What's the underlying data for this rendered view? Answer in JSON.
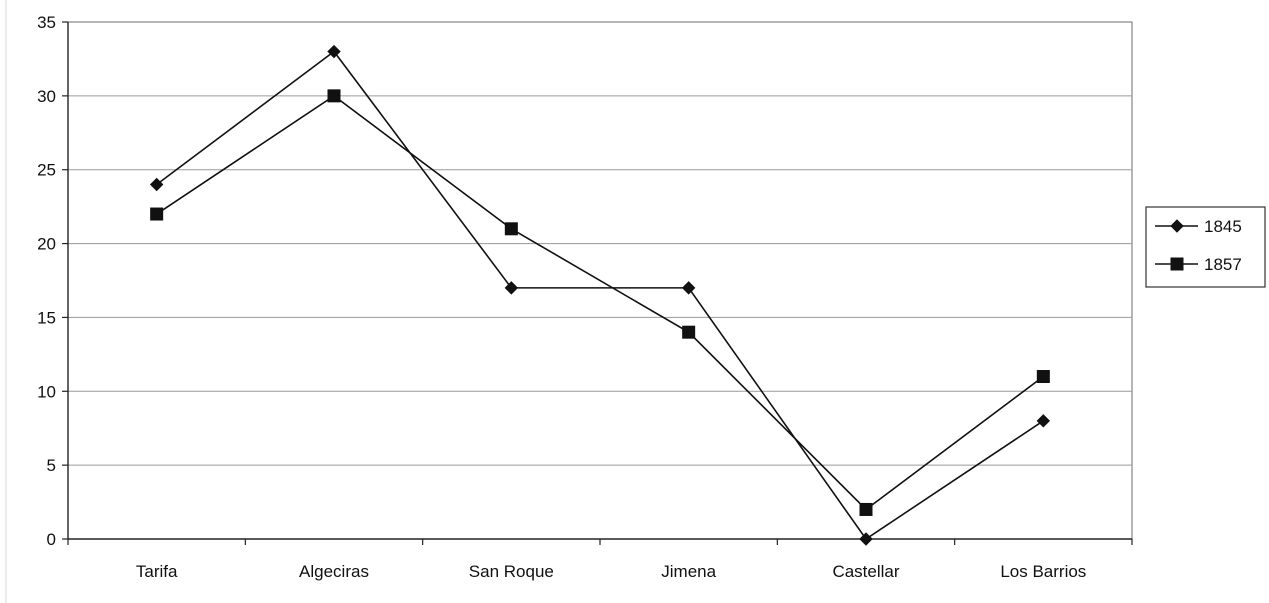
{
  "chart_data": {
    "type": "line",
    "categories": [
      "Tarifa",
      "Algeciras",
      "San Roque",
      "Jimena",
      "Castellar",
      "Los Barrios"
    ],
    "series": [
      {
        "name": "1845",
        "values": [
          24,
          33,
          17,
          17,
          0,
          8
        ],
        "marker": "diamond",
        "color": "#111111"
      },
      {
        "name": "1857",
        "values": [
          22,
          30,
          21,
          14,
          2,
          11
        ],
        "marker": "square",
        "color": "#111111"
      }
    ],
    "y_ticks": [
      0,
      5,
      10,
      15,
      20,
      25,
      30,
      35
    ],
    "ylim": [
      0,
      35
    ],
    "grid": true,
    "legend_position": "right",
    "title": "",
    "xlabel": "",
    "ylabel": ""
  }
}
